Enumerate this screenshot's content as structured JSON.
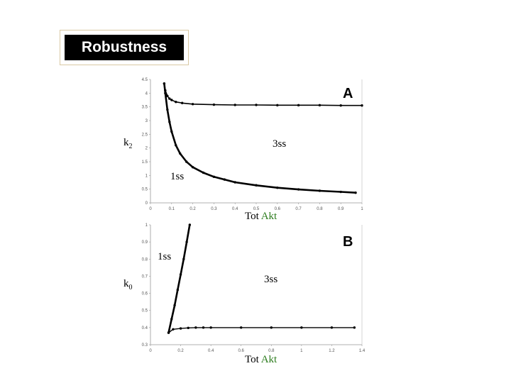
{
  "title": "Robustness",
  "chart_data": [
    {
      "type": "line",
      "panel": "A",
      "ylabel": "k",
      "ylabel_sub": "2",
      "xlabel_prefix": "Tot ",
      "xlabel_emph": "Akt",
      "region_labels": [
        "3ss",
        "1ss"
      ],
      "xlim": [
        0,
        1
      ],
      "ylim": [
        0,
        4.5
      ],
      "xticks": [
        "0",
        "0.1",
        "0.2",
        "0.3",
        "0.4",
        "0.5",
        "0.6",
        "0.7",
        "0.8",
        "0.9",
        "1"
      ],
      "yticks": [
        "0",
        "0.5",
        "1",
        "1.5",
        "2",
        "2.5",
        "3",
        "3.5",
        "4",
        "4.5"
      ],
      "grid": false,
      "series": [
        {
          "x": [
            0.065,
            0.07,
            0.08,
            0.09,
            0.1,
            0.12,
            0.15,
            0.2,
            0.3,
            0.4,
            0.5,
            0.6,
            0.7,
            0.8,
            0.9,
            1.0
          ],
          "y": [
            4.35,
            4.1,
            3.9,
            3.8,
            3.75,
            3.68,
            3.64,
            3.6,
            3.58,
            3.57,
            3.57,
            3.56,
            3.56,
            3.56,
            3.55,
            3.55
          ]
        },
        {
          "x": [
            0.065,
            0.07,
            0.08,
            0.09,
            0.1,
            0.12,
            0.14,
            0.17,
            0.2,
            0.25,
            0.3,
            0.35,
            0.4,
            0.5,
            0.6,
            0.7,
            0.8,
            0.9,
            0.97
          ],
          "y": [
            4.35,
            4.0,
            3.4,
            2.95,
            2.6,
            2.1,
            1.8,
            1.5,
            1.3,
            1.1,
            0.95,
            0.85,
            0.75,
            0.64,
            0.55,
            0.49,
            0.44,
            0.4,
            0.37
          ]
        }
      ]
    },
    {
      "type": "line",
      "panel": "B",
      "ylabel": "k",
      "ylabel_sub": "0",
      "xlabel_prefix": "Tot ",
      "xlabel_emph": "Akt",
      "region_labels": [
        "1ss",
        "3ss"
      ],
      "xlim": [
        0,
        1.4
      ],
      "ylim": [
        0.3,
        1.0
      ],
      "xticks": [
        "0",
        "0.2",
        "0.4",
        "0.6",
        "0.8",
        "1",
        "1.2",
        "1.4"
      ],
      "yticks": [
        "0.3",
        "0.4",
        "0.5",
        "0.6",
        "0.7",
        "0.8",
        "0.9",
        "1"
      ],
      "grid": false,
      "series": [
        {
          "x": [
            0.12,
            0.15,
            0.2,
            0.25,
            0.3,
            0.35,
            0.4,
            0.6,
            0.8,
            1.0,
            1.2,
            1.35
          ],
          "y": [
            0.37,
            0.39,
            0.395,
            0.398,
            0.4,
            0.4,
            0.4,
            0.4,
            0.4,
            0.4,
            0.4,
            0.4
          ]
        },
        {
          "x": [
            0.12,
            0.14,
            0.16,
            0.18,
            0.2,
            0.22,
            0.24,
            0.26
          ],
          "y": [
            0.37,
            0.45,
            0.53,
            0.62,
            0.71,
            0.8,
            0.9,
            1.0
          ]
        }
      ]
    }
  ]
}
